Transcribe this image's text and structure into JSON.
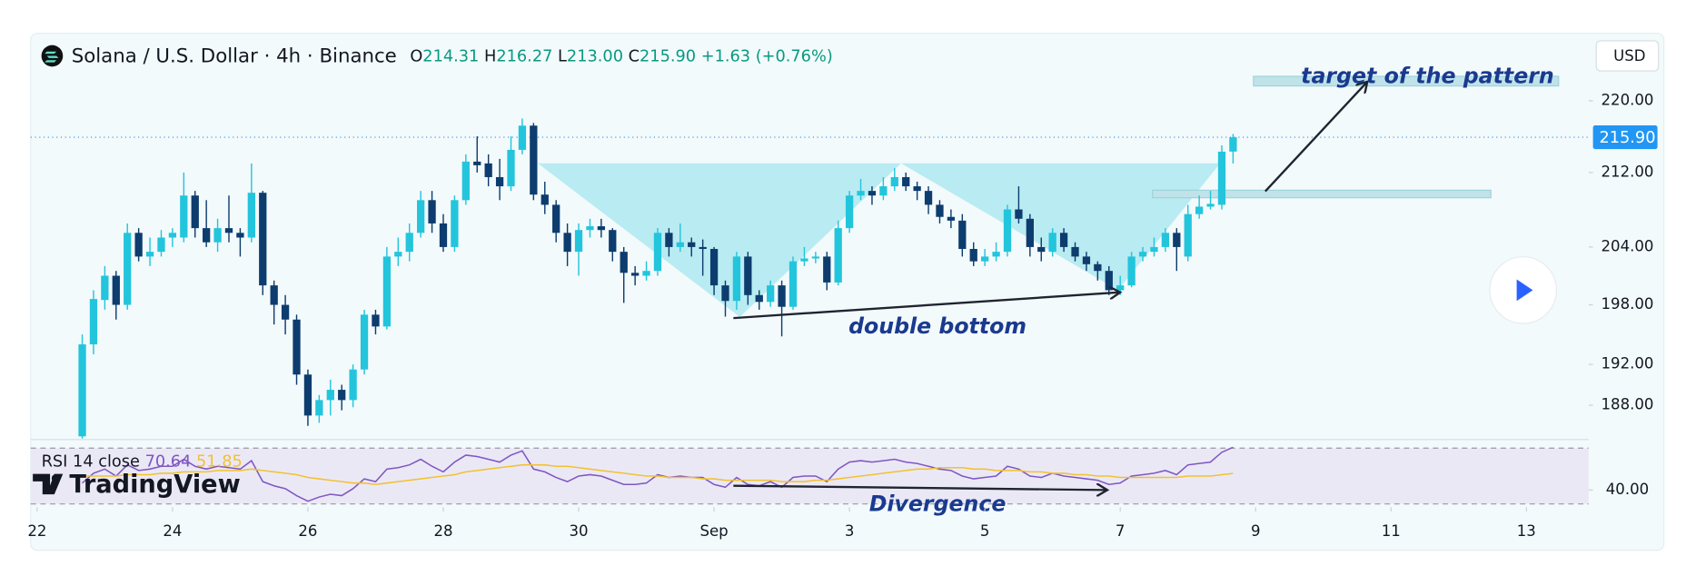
{
  "header": {
    "title": "Solana / U.S. Dollar · 4h · Binance",
    "ohlc": [
      {
        "key": "O",
        "text": "214.31"
      },
      {
        "key": "H",
        "text": "216.27"
      },
      {
        "key": "L",
        "text": "213.00"
      },
      {
        "key": "C",
        "text": "215.90"
      }
    ],
    "change": "+1.63 (+0.76%)"
  },
  "currency_button": "USD",
  "logo": "TradingView",
  "chart_data": {
    "type": "candlestick",
    "log_scale": true,
    "up_color": "#22c5dc",
    "down_color": "#0d3c6e",
    "xlim": [
      -0.57,
      137.52
    ],
    "xticks": [
      {
        "value": 0,
        "label": "22"
      },
      {
        "value": 12,
        "label": "24"
      },
      {
        "value": 24,
        "label": "26"
      },
      {
        "value": 36,
        "label": "28"
      },
      {
        "value": 48,
        "label": "30"
      },
      {
        "value": 60,
        "label": "Sep"
      },
      {
        "value": 72,
        "label": "3"
      },
      {
        "value": 84,
        "label": "5"
      },
      {
        "value": 96,
        "label": "7"
      },
      {
        "value": 108,
        "label": "9"
      },
      {
        "value": 120,
        "label": "11"
      },
      {
        "value": 132,
        "label": "13"
      }
    ],
    "ylim": [
      184.8,
      227.3
    ],
    "yticks": [
      {
        "value": 220,
        "label": "220.00"
      },
      {
        "value": 212,
        "label": "212.00"
      },
      {
        "value": 204,
        "label": "204.00"
      },
      {
        "value": 198,
        "label": "198.00"
      },
      {
        "value": 192,
        "label": "192.00"
      },
      {
        "value": 188,
        "label": "188.00"
      }
    ],
    "last_price": {
      "value": 215.9,
      "label": "215.90",
      "color": "#2196f3"
    },
    "annotations": [
      "target of the pattern",
      "double bottom",
      "Divergence"
    ],
    "candles": {
      "x": [
        4,
        5,
        6,
        7,
        8,
        9,
        10,
        11,
        12,
        13,
        14,
        15,
        16,
        17,
        18,
        19,
        20,
        21,
        22,
        23,
        24,
        25,
        26,
        27,
        28,
        29,
        30,
        31,
        32,
        33,
        34,
        35,
        36,
        37,
        38,
        39,
        40,
        41,
        42,
        43,
        44,
        45,
        46,
        47,
        48,
        49,
        50,
        51,
        52,
        53,
        54,
        55,
        56,
        57,
        58,
        59,
        60,
        61,
        62,
        63,
        64,
        65,
        66,
        67,
        68,
        69,
        70,
        71,
        72,
        73,
        74,
        75,
        76,
        77,
        78,
        79,
        80,
        81,
        82,
        83,
        84,
        85,
        86,
        87,
        88,
        89,
        90,
        91,
        92,
        93,
        94,
        95,
        96,
        97,
        98,
        99,
        100,
        101,
        102,
        103,
        104,
        105,
        106
      ],
      "open": [
        185,
        194,
        198.5,
        201,
        198,
        205.5,
        203,
        203.5,
        205,
        205,
        209.5,
        206,
        204.5,
        206,
        205.5,
        205,
        209.8,
        200,
        198,
        196.5,
        191,
        187,
        188.5,
        189.5,
        188.5,
        191.5,
        197,
        195.8,
        203,
        203.5,
        205.5,
        209,
        206.5,
        204,
        209,
        213.2,
        213,
        211.5,
        210.5,
        214.5,
        217.2,
        209.6,
        208.5,
        205.5,
        203.5,
        205.8,
        206.2,
        205.8,
        203.5,
        201.3,
        201,
        201.5,
        205.5,
        204,
        204.5,
        204,
        203.8,
        200,
        198.4,
        203,
        199,
        198.3,
        200,
        197.8,
        202.5,
        202.8,
        203,
        200.3,
        206,
        209.5,
        210,
        209.5,
        210.5,
        211.5,
        210.5,
        210,
        208.5,
        207.2,
        206.8,
        203.8,
        202.5,
        203,
        203.5,
        208,
        207,
        204,
        203.5,
        205.5,
        204,
        203,
        202.2,
        201.5,
        199.5,
        200,
        203,
        203.5,
        204,
        205.5,
        203,
        207.5,
        208.3,
        208.5,
        214.31
      ],
      "high": [
        195,
        199.5,
        202,
        201.5,
        206.5,
        206,
        205,
        205.8,
        206,
        212,
        210,
        209,
        207,
        209.5,
        206,
        213,
        210,
        200.5,
        199,
        197,
        191.5,
        189,
        190.5,
        190,
        192,
        197.5,
        197.5,
        204,
        205,
        206.5,
        210,
        210,
        207.5,
        209.5,
        214,
        216,
        214,
        213.5,
        216,
        218,
        217.5,
        211,
        209,
        206.5,
        206.5,
        207,
        207,
        206,
        204,
        202,
        202.5,
        206,
        206,
        206.5,
        205,
        204.8,
        204,
        200.5,
        203.5,
        203.5,
        199.5,
        200.5,
        200.5,
        203,
        204,
        203.5,
        203.5,
        206.8,
        210,
        211.3,
        210.5,
        211.5,
        212.5,
        212,
        211,
        210.5,
        209,
        208,
        207.5,
        204.5,
        203.8,
        204.5,
        208.5,
        210.5,
        207.5,
        205,
        206,
        206,
        204.5,
        203.5,
        202.5,
        202,
        201,
        203.5,
        204,
        205,
        206,
        206,
        208.5,
        209.5,
        210,
        215,
        216.27
      ],
      "low": [
        183,
        193,
        197.5,
        196.5,
        197.5,
        202.5,
        202,
        203,
        204,
        204.5,
        205,
        204,
        203.5,
        204.5,
        203,
        204.5,
        199,
        196,
        195,
        190,
        186,
        186.3,
        187,
        187.5,
        187.8,
        191,
        195,
        195.5,
        202,
        202.5,
        205,
        205.5,
        203.5,
        203.5,
        208.5,
        212,
        210.5,
        209,
        210,
        214,
        209,
        207.5,
        204.5,
        202,
        201,
        205,
        205,
        202.5,
        198.2,
        200,
        200.5,
        201,
        203,
        203.5,
        203,
        201,
        199,
        196.8,
        197.5,
        198,
        197.5,
        197.8,
        194.8,
        197.5,
        202,
        202.3,
        199.5,
        200,
        205.5,
        209,
        208.5,
        209,
        210,
        210,
        209,
        207.5,
        206.5,
        206,
        203,
        202,
        202,
        202.5,
        203,
        206.5,
        203,
        202.5,
        203,
        203.5,
        202.5,
        201.5,
        200.5,
        199,
        199,
        199.8,
        202.5,
        203,
        203.5,
        201.5,
        202.5,
        207,
        208,
        208,
        213
      ],
      "close": [
        194,
        198.6,
        201,
        198,
        205.5,
        203,
        203.5,
        205,
        205.5,
        209.5,
        206,
        204.5,
        206,
        205.5,
        205,
        209.8,
        200,
        198,
        196.5,
        191,
        187,
        188.5,
        189.5,
        188.5,
        191.5,
        197,
        195.8,
        203,
        203.5,
        205.5,
        209,
        206.5,
        204,
        209,
        213.2,
        212.8,
        211.5,
        210.5,
        214.5,
        217.2,
        209.6,
        208.5,
        205.5,
        203.5,
        205.8,
        206.2,
        205.8,
        203.5,
        201.3,
        201,
        201.5,
        205.5,
        204,
        204.5,
        204,
        203.8,
        200,
        198.4,
        203,
        199,
        198.3,
        200,
        197.8,
        202.5,
        202.8,
        203,
        200.3,
        206,
        209.5,
        210,
        209.5,
        210.5,
        211.5,
        210.5,
        210,
        208.5,
        207.2,
        206.8,
        203.8,
        202.5,
        203,
        203.5,
        208,
        207,
        204,
        203.5,
        205.5,
        204,
        203,
        202.2,
        201.5,
        199.5,
        200,
        203,
        203.5,
        204,
        205.5,
        204,
        207.5,
        208.3,
        208.6,
        214.3,
        215.9
      ]
    },
    "rsi": {
      "label": "RSI 14 close",
      "ylim": [
        29.2,
        75.4
      ],
      "yticks": [
        {
          "value": 40,
          "label": "40.00"
        }
      ],
      "bands": [
        30,
        70
      ],
      "band_color": "#ebe8f6",
      "series": [
        {
          "color": "#7e57c2",
          "values": [
            45,
            52,
            55,
            50,
            58,
            54,
            55,
            57,
            57,
            62,
            57,
            55,
            57,
            56,
            55,
            61,
            46,
            43,
            41,
            36,
            32,
            35,
            37,
            36,
            41,
            48,
            46,
            55,
            56,
            58,
            62,
            57,
            53,
            60,
            65,
            64,
            62,
            60,
            65,
            68,
            55,
            53,
            49,
            46,
            50,
            51,
            50,
            47,
            44,
            44,
            45,
            51,
            49,
            50,
            49,
            49,
            44,
            42,
            49,
            44,
            43,
            46,
            42,
            49,
            50,
            50,
            46,
            55,
            60,
            61,
            60,
            61,
            62,
            60,
            59,
            57,
            55,
            54,
            50,
            48,
            49,
            50,
            57,
            55,
            50,
            49,
            52,
            50,
            49,
            48,
            47,
            44,
            45,
            50,
            51,
            52,
            54,
            51,
            58,
            59,
            60,
            67,
            70.64
          ]
        },
        {
          "color": "#f2c230",
          "values": [
            50,
            50,
            50,
            50,
            51,
            51,
            51,
            52,
            52,
            53,
            53,
            53,
            54,
            54,
            54,
            55,
            54,
            53,
            52,
            51,
            49,
            48,
            47,
            46,
            45,
            45,
            44,
            45,
            46,
            47,
            48,
            49,
            50,
            51,
            53,
            54,
            55,
            56,
            57,
            58,
            58,
            58,
            57,
            57,
            56,
            55,
            54,
            53,
            52,
            51,
            50,
            50,
            49,
            49,
            49,
            48,
            48,
            47,
            47,
            47,
            47,
            47,
            46,
            46,
            46,
            47,
            47,
            48,
            49,
            50,
            51,
            52,
            53,
            54,
            55,
            55,
            56,
            56,
            56,
            55,
            55,
            54,
            54,
            54,
            53,
            53,
            52,
            52,
            51,
            51,
            50,
            50,
            49,
            49,
            49,
            49,
            49,
            49,
            50,
            50,
            50,
            51,
            51.85
          ]
        }
      ]
    }
  }
}
